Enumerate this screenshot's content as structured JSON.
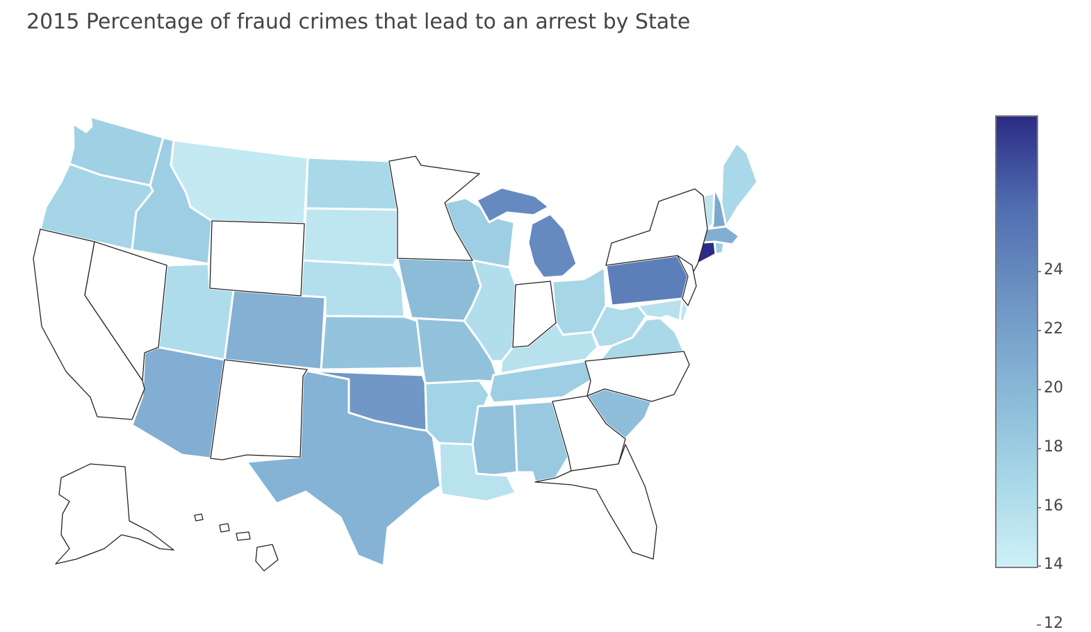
{
  "title": "2015 Percentage of fraud crimes that lead to an arrest by State",
  "colorscale": {
    "min": 10.2,
    "max": 25.4,
    "stops": [
      "#cdf0f6",
      "#a6d6e7",
      "#87b6d6",
      "#6d93c3",
      "#4f6db0",
      "#2c2c86"
    ],
    "ticks": [
      24,
      22,
      20,
      18,
      16,
      14,
      12
    ]
  },
  "no_data_fill": "#ffffff",
  "chart_data": {
    "type": "choropleth",
    "title": "2015 Percentage of fraud crimes that lead to an arrest by State",
    "colorbar": {
      "range": [
        10.2,
        25.4
      ],
      "ticks": [
        12,
        14,
        16,
        18,
        20,
        22,
        24
      ],
      "placement": "right"
    },
    "values": {
      "WA": 13.8,
      "OR": 13.3,
      "ID": 14.0,
      "MT": 11.0,
      "WY": null,
      "ND": 13.0,
      "SD": 11.4,
      "NE": 12.2,
      "KS": 15.0,
      "CO": 16.8,
      "UT": 12.5,
      "NV": null,
      "CA": null,
      "AZ": 17.0,
      "NM": null,
      "TX": 16.5,
      "OK": 19.0,
      "MN": null,
      "IA": 15.7,
      "MO": 15.2,
      "AR": 13.5,
      "LA": 11.8,
      "WI": 14.0,
      "IL": 12.3,
      "MI": 20.0,
      "IN": null,
      "OH": 13.2,
      "KY": 12.0,
      "TN": 14.0,
      "MS": 15.2,
      "AL": 14.5,
      "GA": null,
      "FL": null,
      "SC": 15.5,
      "NC": null,
      "VA": 13.0,
      "WV": 12.6,
      "PA": 21.0,
      "NY": null,
      "VT": 11.5,
      "NH": 17.5,
      "ME": 13.0,
      "MA": 17.0,
      "RI": 14.0,
      "CT": 25.4,
      "NJ": null,
      "DE": 11.5,
      "MD": 12.0,
      "AK": null,
      "HI": null
    }
  }
}
